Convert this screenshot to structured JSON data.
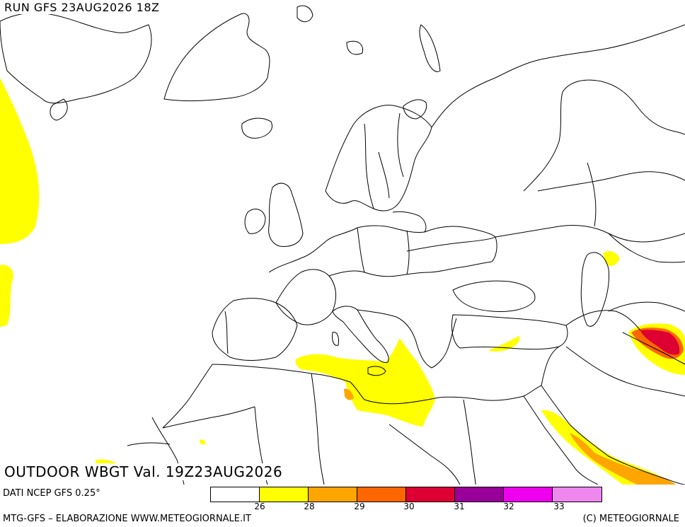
{
  "header": {
    "run": "RUN GFS 23AUG2026 18Z",
    "validity": "OUTDOOR WBGT Val. 19Z23AUG2026"
  },
  "footer": {
    "data_source": "DATI NCEP GFS 0.25°",
    "credit_left": "MTG-GFS – ELABORAZIONE WWW.METEOGIORNALE.IT",
    "credit_right": "(C) METEOGIORNALE"
  },
  "legend": {
    "colors": [
      "#ffffff",
      "#ffff00",
      "#ffa500",
      "#ff6600",
      "#dd0033",
      "#990099",
      "#ee00ee",
      "#ee88ee"
    ],
    "tick_labels": [
      "26",
      "28",
      "29",
      "30",
      "31",
      "32",
      "33"
    ]
  },
  "map": {
    "region": "Europe / North Africa / Middle East",
    "colors": {
      "lines": "#000000",
      "level_26": "#ffff00",
      "level_28": "#ffa500",
      "level_29": "#ff6600",
      "level_31": "#dd0033"
    }
  }
}
